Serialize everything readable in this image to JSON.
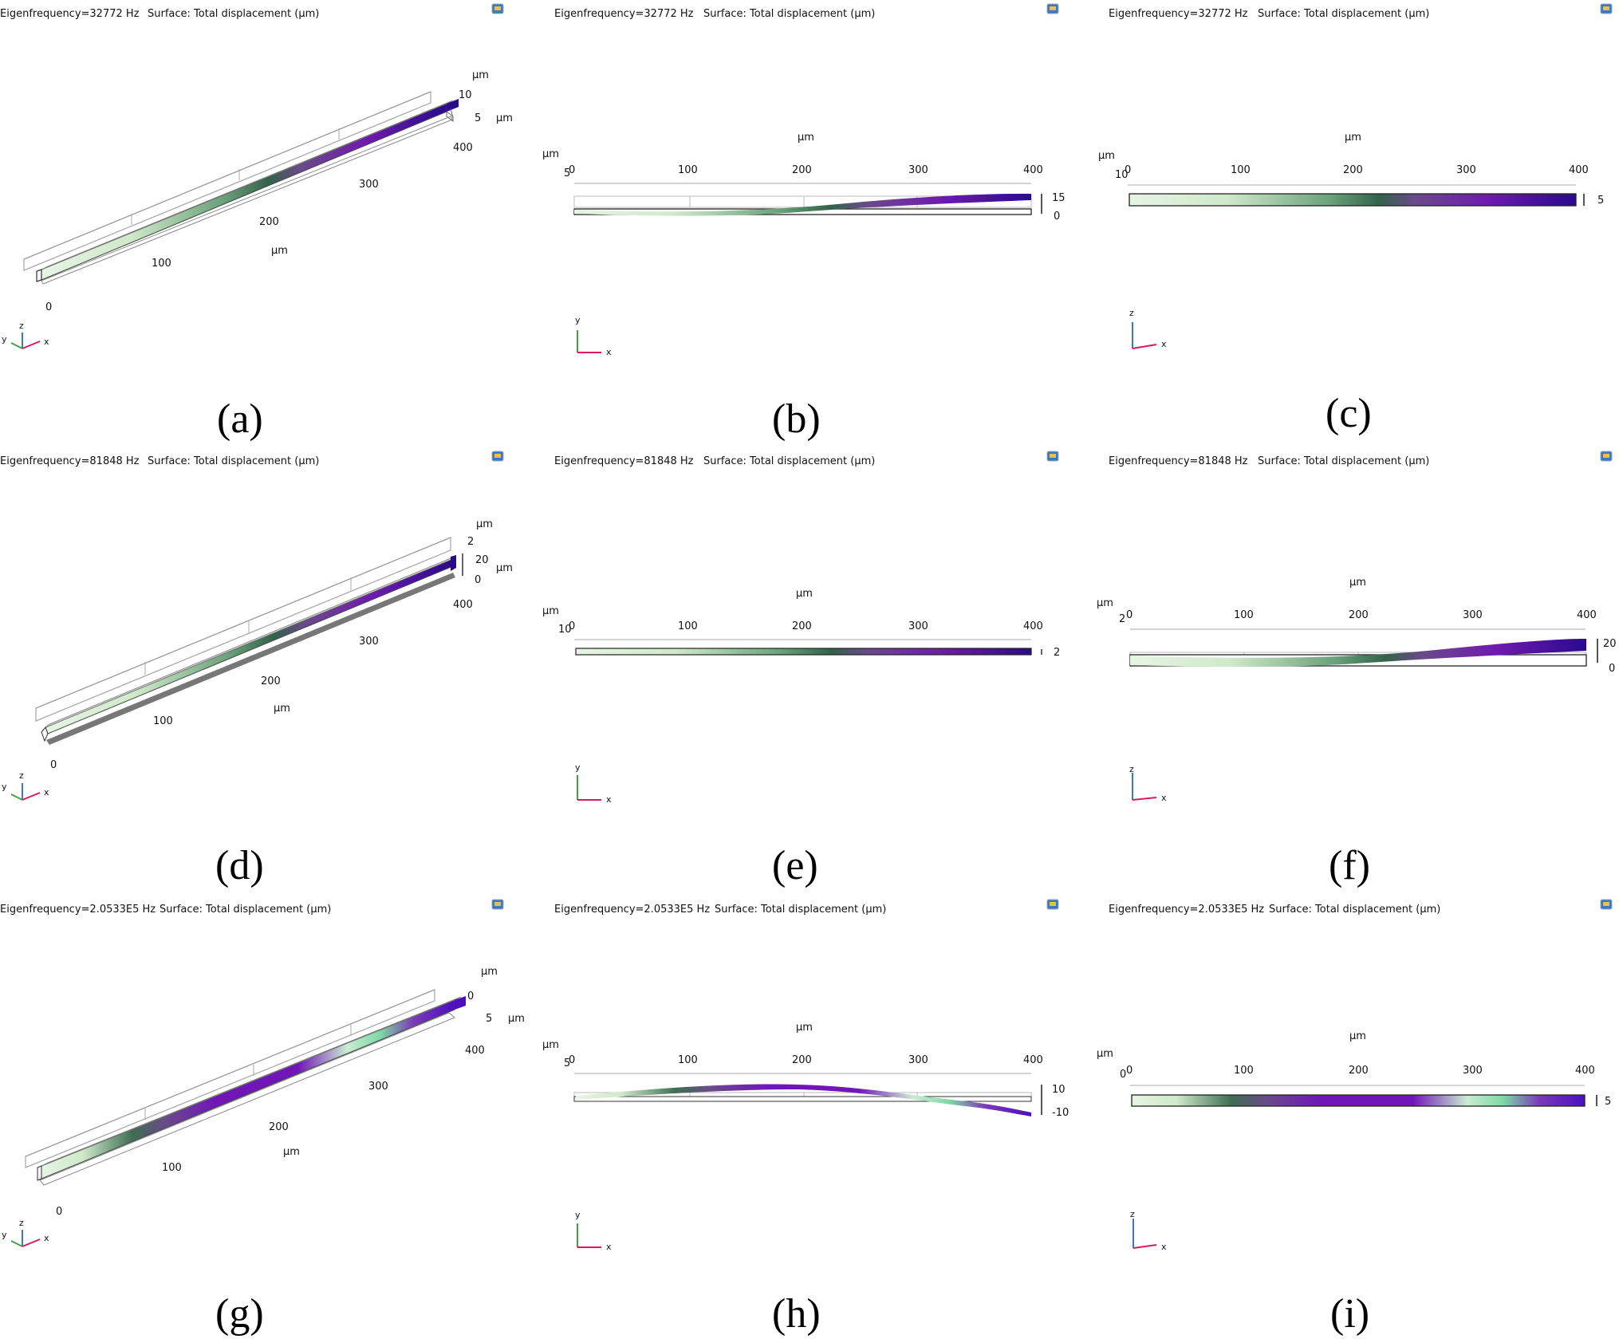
{
  "gradients": {
    "mode1": [
      [
        "0",
        "#e6f5e4"
      ],
      [
        "0.22",
        "#cfe9c9"
      ],
      [
        "0.45",
        "#6aa17a"
      ],
      [
        "0.56",
        "#33624a"
      ],
      [
        "0.64",
        "#6a4a8a"
      ],
      [
        "0.8",
        "#6f1bb0"
      ],
      [
        "1",
        "#2a0a8c"
      ]
    ],
    "mode3": [
      [
        "0",
        "#e6f5e4"
      ],
      [
        "0.1",
        "#cfe9c9"
      ],
      [
        "0.22",
        "#3e6e52"
      ],
      [
        "0.3",
        "#6a4a8a"
      ],
      [
        "0.42",
        "#7016b8"
      ],
      [
        "0.62",
        "#7016b8"
      ],
      [
        "0.74",
        "#c9ecd2"
      ],
      [
        "0.82",
        "#7ed8a6"
      ],
      [
        "0.9",
        "#7b3ab8"
      ],
      [
        "1",
        "#4b0fc0"
      ]
    ]
  },
  "panels": [
    {
      "id": "a",
      "caption": "(a)",
      "view": "iso",
      "eigenfrequency": "Eigenfrequency=32772 Hz",
      "surface": "Surface: Total displacement (μm)",
      "ticks_x": [
        "0",
        "100",
        "200",
        "300",
        "400"
      ],
      "unit_x": "μm",
      "ticks_z": [
        "10",
        "5"
      ],
      "unit_z": "μm",
      "unit_y": "μm",
      "triad": [
        "y",
        "z",
        "x"
      ]
    },
    {
      "id": "b",
      "caption": "(b)",
      "view": "xy",
      "eigenfrequency": "Eigenfrequency=32772 Hz",
      "surface": "Surface: Total displacement (μm)",
      "ticks_x": [
        "0",
        "100",
        "200",
        "300",
        "400"
      ],
      "unit_x": "μm",
      "ticks_side": [
        "15",
        "0"
      ],
      "corner_tick": "5",
      "corner_unit": "μm",
      "triad": [
        "y",
        "x"
      ]
    },
    {
      "id": "c",
      "caption": "(c)",
      "view": "xz",
      "eigenfrequency": "Eigenfrequency=32772 Hz",
      "surface": "Surface: Total displacement (μm)",
      "ticks_x": [
        "0",
        "100",
        "200",
        "300",
        "400"
      ],
      "unit_x": "μm",
      "ticks_side": [
        "5"
      ],
      "corner_tick": "10",
      "corner_unit": "μm",
      "triad": [
        "z",
        "x"
      ]
    },
    {
      "id": "d",
      "caption": "(d)",
      "view": "iso",
      "eigenfrequency": "Eigenfrequency=81848 Hz",
      "surface": "Surface: Total displacement (μm)",
      "ticks_x": [
        "0",
        "100",
        "200",
        "300",
        "400"
      ],
      "unit_x": "μm",
      "ticks_z": [
        "2",
        "20",
        "0"
      ],
      "unit_z": "μm",
      "unit_y": "μm",
      "triad": [
        "y",
        "z",
        "x"
      ]
    },
    {
      "id": "e",
      "caption": "(e)",
      "view": "xy",
      "eigenfrequency": "Eigenfrequency=81848 Hz",
      "surface": "Surface: Total displacement (μm)",
      "ticks_x": [
        "0",
        "100",
        "200",
        "300",
        "400"
      ],
      "unit_x": "μm",
      "ticks_side": [
        "2"
      ],
      "corner_tick": "10",
      "corner_unit": "μm",
      "triad": [
        "y",
        "x"
      ]
    },
    {
      "id": "f",
      "caption": "(f)",
      "view": "xz",
      "eigenfrequency": "Eigenfrequency=81848 Hz",
      "surface": "Surface: Total displacement (μm)",
      "ticks_x": [
        "0",
        "100",
        "200",
        "300",
        "400"
      ],
      "unit_x": "μm",
      "ticks_side": [
        "20",
        "0"
      ],
      "corner_tick": "2",
      "corner_unit": "μm",
      "triad": [
        "z",
        "x"
      ]
    },
    {
      "id": "g",
      "caption": "(g)",
      "view": "iso",
      "eigenfrequency": "Eigenfrequency=2.0533E5 Hz",
      "surface": "Surface: Total displacement (μm)",
      "ticks_x": [
        "0",
        "100",
        "200",
        "300",
        "400"
      ],
      "unit_x": "μm",
      "ticks_z": [
        "0",
        "5"
      ],
      "unit_z": "μm",
      "unit_y": "μm",
      "triad": [
        "y",
        "z",
        "x"
      ]
    },
    {
      "id": "h",
      "caption": "(h)",
      "view": "xy",
      "eigenfrequency": "Eigenfrequency=2.0533E5 Hz",
      "surface": "Surface: Total displacement (μm)",
      "ticks_x": [
        "0",
        "100",
        "200",
        "300",
        "400"
      ],
      "unit_x": "μm",
      "ticks_side": [
        "10",
        "-10"
      ],
      "corner_tick": "5",
      "corner_unit": "μm",
      "triad": [
        "y",
        "x"
      ]
    },
    {
      "id": "i",
      "caption": "(i)",
      "view": "xz",
      "eigenfrequency": "Eigenfrequency=2.0533E5 Hz",
      "surface": "Surface: Total displacement (μm)",
      "ticks_x": [
        "0",
        "100",
        "200",
        "300",
        "400"
      ],
      "unit_x": "μm",
      "ticks_side": [
        "5"
      ],
      "corner_tick": "0",
      "corner_unit": "μm",
      "triad": [
        "z",
        "x"
      ]
    }
  ]
}
